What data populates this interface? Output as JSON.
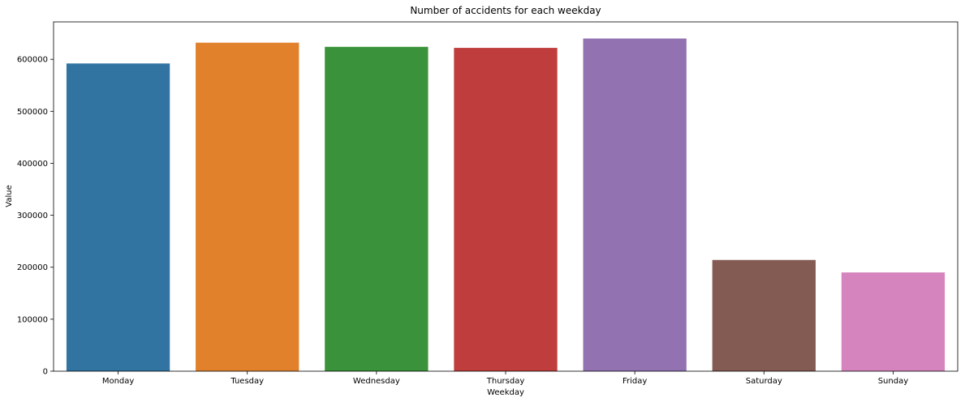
{
  "chart_data": {
    "type": "bar",
    "title": "Number of accidents for each weekday",
    "xlabel": "Weekday",
    "ylabel": "Value",
    "categories": [
      "Monday",
      "Tuesday",
      "Wednesday",
      "Thursday",
      "Friday",
      "Saturday",
      "Sunday"
    ],
    "values": [
      592000,
      632000,
      624000,
      622000,
      640000,
      214000,
      190000
    ],
    "colors": [
      "#3274a1",
      "#e1812c",
      "#3a923a",
      "#c03d3e",
      "#9372b2",
      "#845b53",
      "#d684bd"
    ],
    "ylim": [
      0,
      672000
    ],
    "yticks": [
      0,
      100000,
      200000,
      300000,
      400000,
      500000,
      600000
    ],
    "grid": false,
    "legend": "none"
  }
}
